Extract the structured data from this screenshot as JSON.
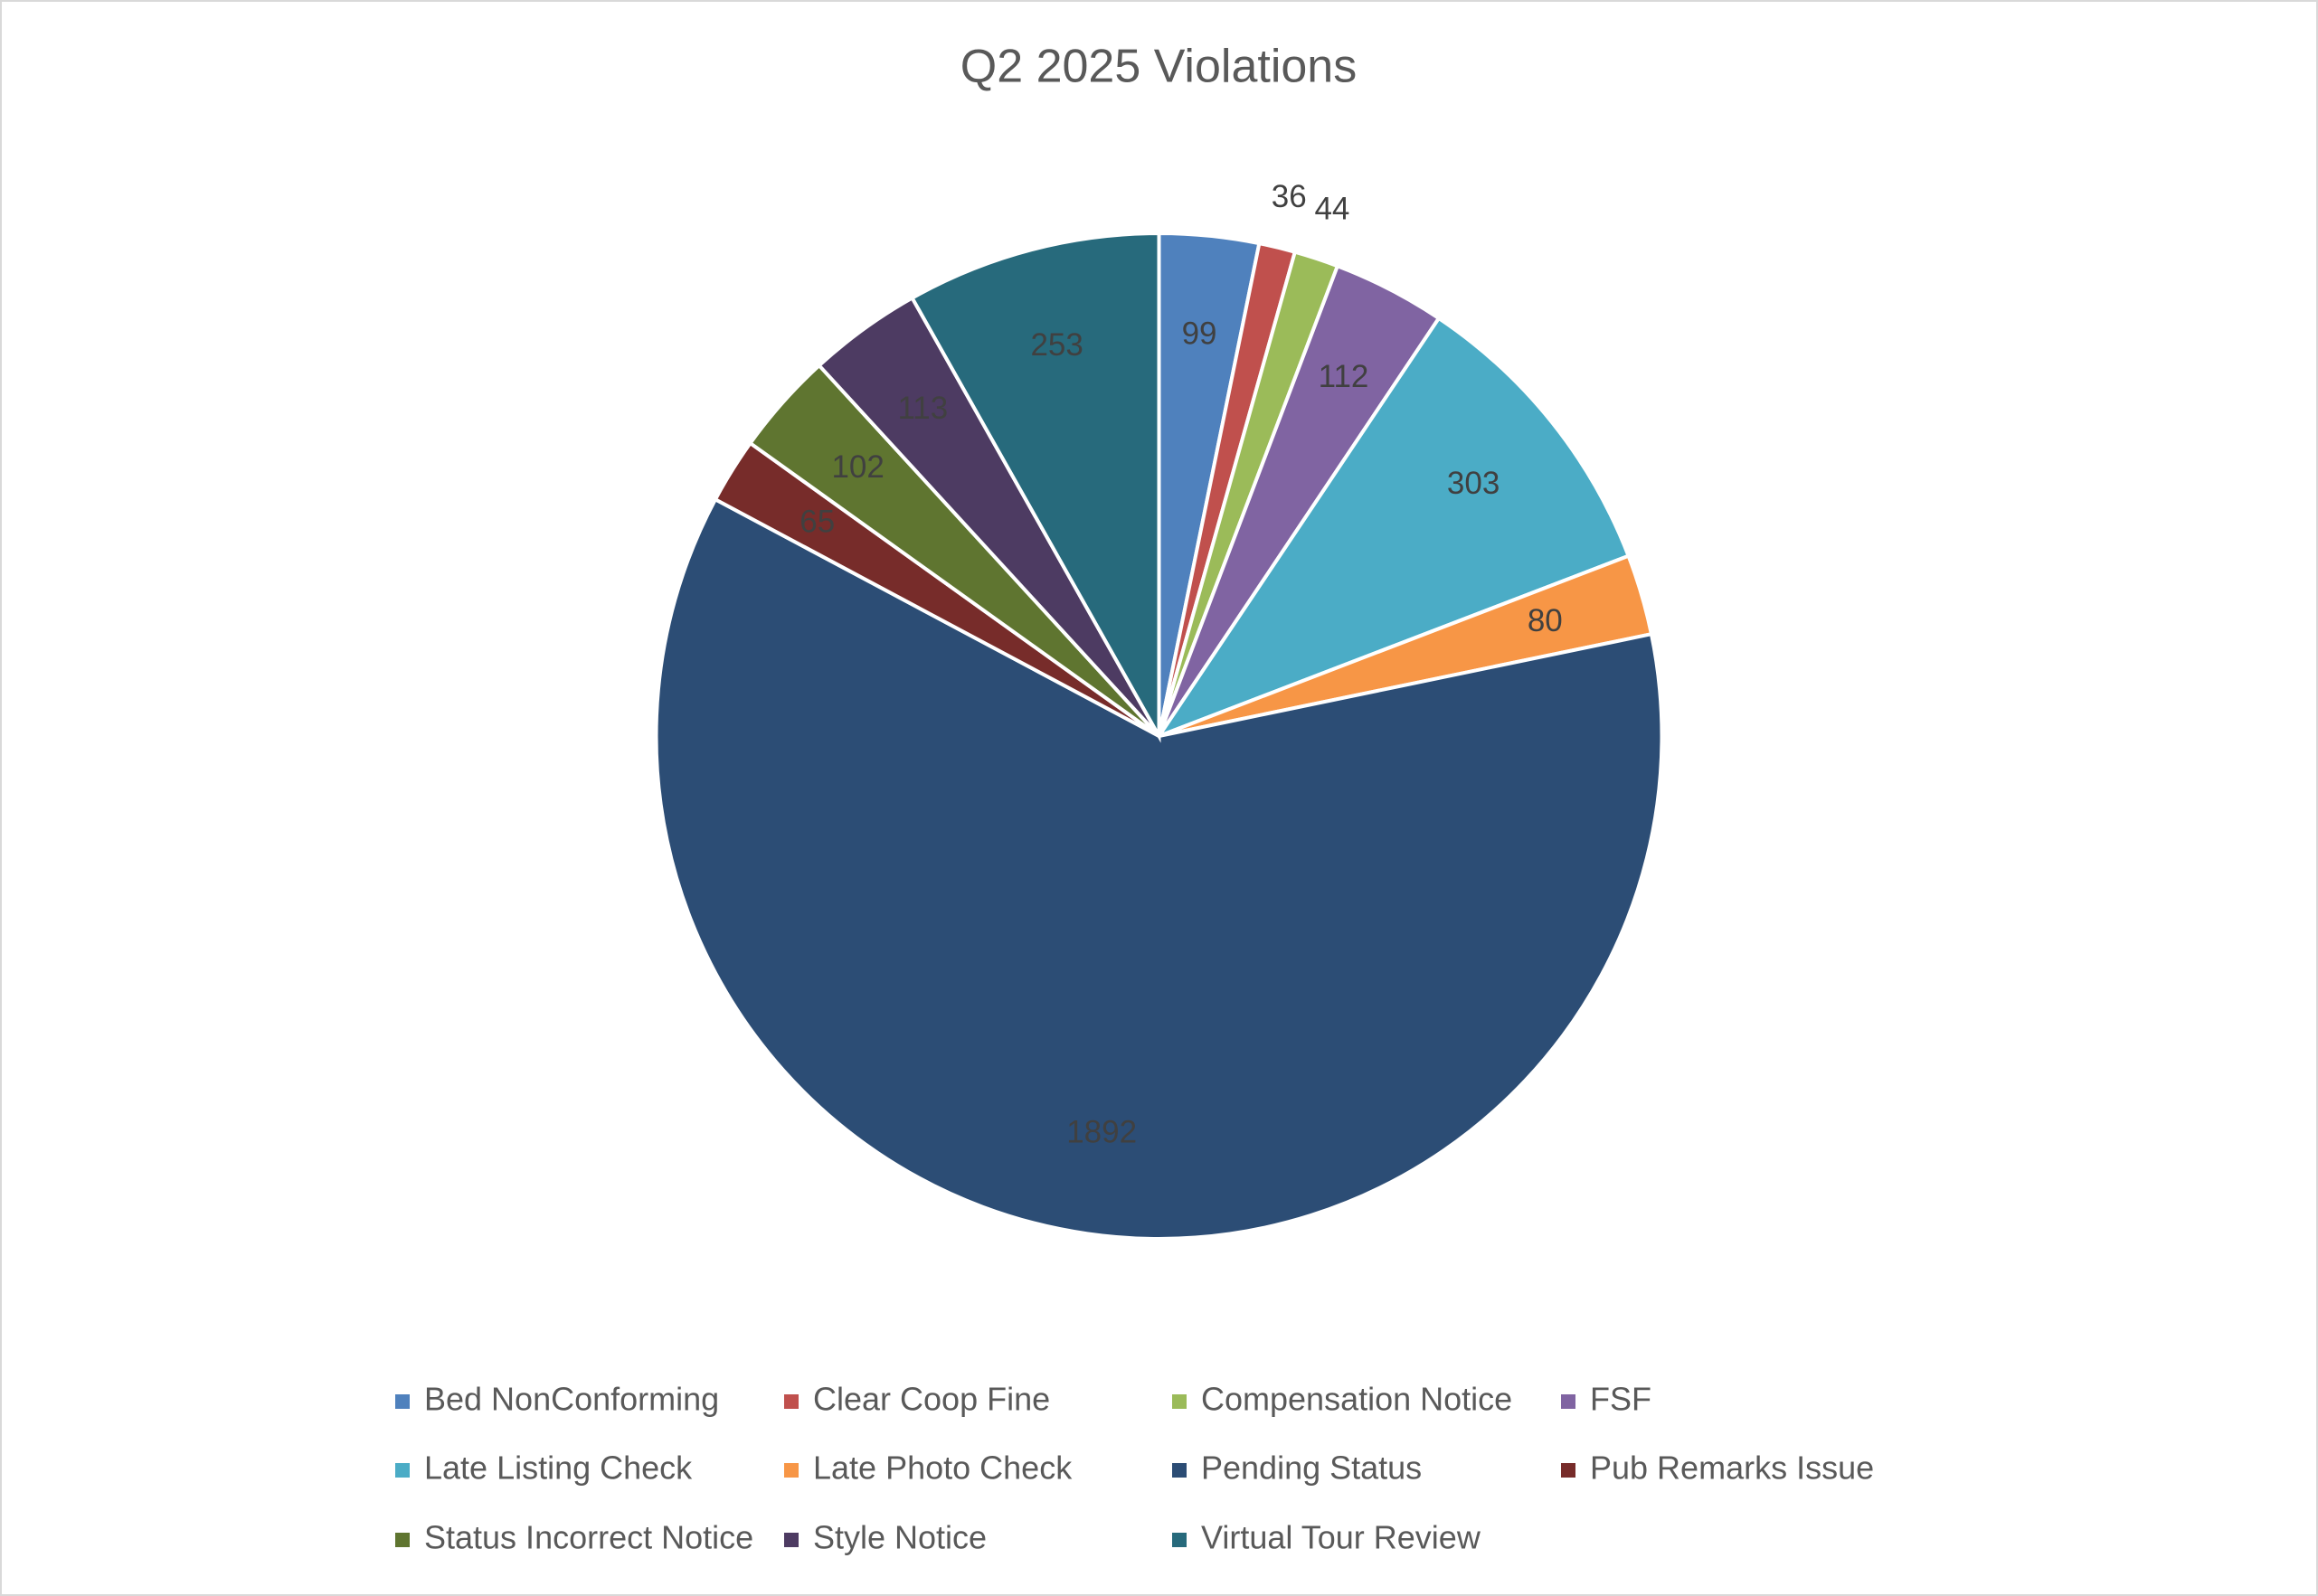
{
  "chart_data": {
    "type": "pie",
    "title": "Q2 2025 Violations",
    "categories": [
      "Bed NonConforming",
      "Clear Coop Fine",
      "Compensation Notice",
      "FSF",
      "Late Listing Check",
      "Late Photo Check",
      "Pending Status",
      "Pub Remarks Issue",
      "Status Incorrect Notice",
      "Style Notice",
      "Virtual Tour Review"
    ],
    "values": [
      99,
      36,
      44,
      112,
      303,
      80,
      1892,
      65,
      102,
      113,
      253
    ],
    "colors": [
      "#4f81bd",
      "#c0504d",
      "#9bbb59",
      "#8064a2",
      "#4bacc6",
      "#f79646",
      "#2c4d75",
      "#772c2a",
      "#5f7530",
      "#4d3b62",
      "#276a7c"
    ],
    "legend": "bottom"
  }
}
